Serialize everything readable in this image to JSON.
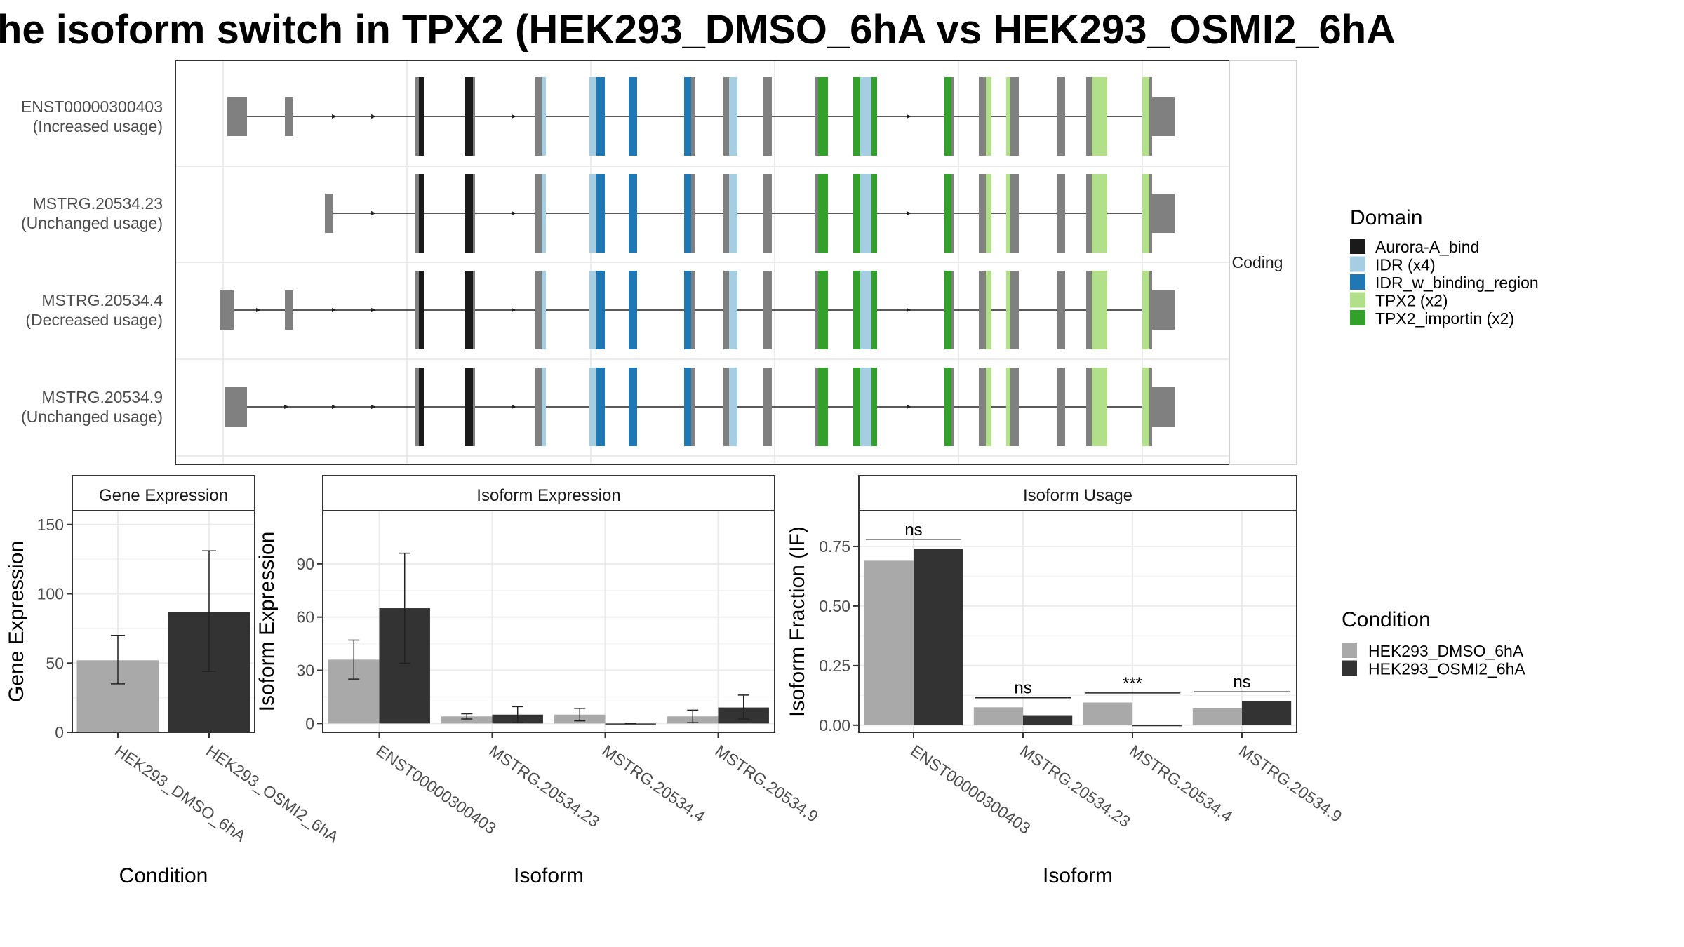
{
  "title": "he isoform switch in TPX2 (HEK293_DMSO_6hA vs HEK293_OSMI2_6hA",
  "colors": {
    "intron_line": "#222222",
    "exon": "#808080",
    "grid": "#ebebeb",
    "panel_border": "#333333",
    "cond1": "#a9a9a9",
    "cond2": "#333333"
  },
  "chart_data": [
    {
      "type": "gene-structure",
      "strip_label": "Coding",
      "transcripts": [
        {
          "id": "ENST00000300403",
          "usage": "(Increased usage)",
          "first_exon": "5utr_a"
        },
        {
          "id": "MSTRG.20534.23",
          "usage": "(Unchanged usage)",
          "first_exon": "5utr_b"
        },
        {
          "id": "MSTRG.20534.4",
          "usage": "(Decreased usage)",
          "first_exon": "5utr_c"
        },
        {
          "id": "MSTRG.20534.9",
          "usage": "(Unchanged usage)",
          "first_exon": "5utr_d"
        }
      ],
      "legend": {
        "title": "Domain",
        "entries": [
          {
            "label": "Aurora-A_bind",
            "color": "#1a1a1a"
          },
          {
            "label": "IDR (x4)",
            "color": "#a6cee3"
          },
          {
            "label": "IDR_w_binding_region",
            "color": "#1f78b4"
          },
          {
            "label": "TPX2 (x2)",
            "color": "#b2df8a"
          },
          {
            "label": "TPX2_importin (x2)",
            "color": "#33a02c"
          }
        ]
      }
    },
    {
      "type": "bar",
      "strip": "Gene Expression",
      "xlabel": "Condition",
      "ylabel": "Gene Expression",
      "categories": [
        "HEK293_DMSO_6hA",
        "HEK293_OSMI2_6hA"
      ],
      "ylim": [
        0,
        160
      ],
      "yticks": [
        0,
        50,
        100,
        150
      ],
      "values": [
        52,
        87
      ],
      "errors": [
        [
          35,
          70
        ],
        [
          44,
          131
        ]
      ]
    },
    {
      "type": "bar",
      "strip": "Isoform Expression",
      "xlabel": "Isoform",
      "ylabel": "Isoform Expression",
      "categories": [
        "ENST00000300403",
        "MSTRG.20534.23",
        "MSTRG.20534.4",
        "MSTRG.20534.9"
      ],
      "ylim": [
        -5,
        120
      ],
      "yticks": [
        0,
        30,
        60,
        90
      ],
      "series": [
        {
          "name": "HEK293_DMSO_6hA",
          "values": [
            36,
            4,
            5,
            4
          ],
          "errors": [
            [
              25,
              47
            ],
            [
              2.5,
              5.5
            ],
            [
              1.5,
              8.5
            ],
            [
              0.5,
              7.5
            ]
          ]
        },
        {
          "name": "HEK293_OSMI2_6hA",
          "values": [
            65,
            5,
            0,
            9
          ],
          "errors": [
            [
              34,
              96
            ],
            [
              0.5,
              9.5
            ],
            [
              0,
              0
            ],
            [
              2.5,
              16
            ]
          ]
        }
      ]
    },
    {
      "type": "bar",
      "strip": "Isoform Usage",
      "xlabel": "Isoform",
      "ylabel": "Isoform Fraction (IF)",
      "categories": [
        "ENST00000300403",
        "MSTRG.20534.23",
        "MSTRG.20534.4",
        "MSTRG.20534.9"
      ],
      "ylim": [
        -0.03,
        0.9
      ],
      "yticks": [
        0.0,
        0.25,
        0.5,
        0.75
      ],
      "ytick_labels": [
        "0.00",
        "0.25",
        "0.50",
        "0.75"
      ],
      "series": [
        {
          "name": "HEK293_DMSO_6hA",
          "values": [
            0.69,
            0.075,
            0.095,
            0.07
          ]
        },
        {
          "name": "HEK293_OSMI2_6hA",
          "values": [
            0.74,
            0.042,
            0.0,
            0.1
          ]
        }
      ],
      "significance": [
        "ns",
        "ns",
        "***",
        "ns"
      ],
      "sig_y": [
        0.78,
        0.115,
        0.135,
        0.14
      ],
      "legend": {
        "title": "Condition",
        "entries": [
          {
            "label": "HEK293_DMSO_6hA",
            "color": "#a9a9a9"
          },
          {
            "label": "HEK293_OSMI2_6hA",
            "color": "#333333"
          }
        ]
      }
    }
  ]
}
